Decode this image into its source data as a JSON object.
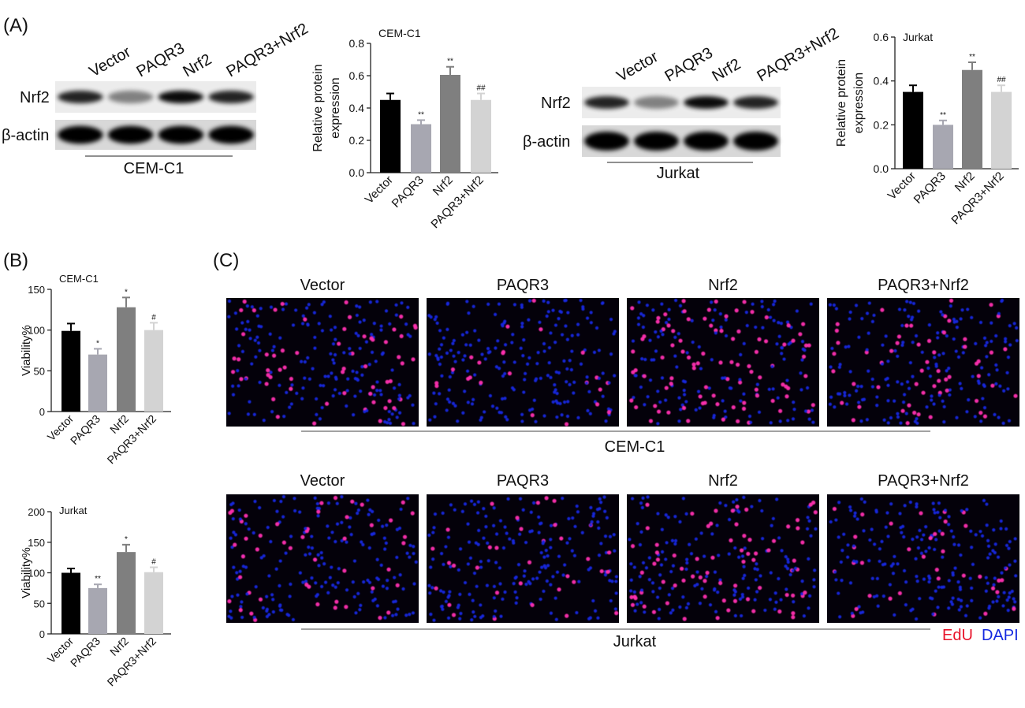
{
  "panel_labels": [
    "(A)",
    "(B)",
    "(C)"
  ],
  "blots": [
    {
      "lanes": [
        "Vector",
        "PAQR3",
        "Nrf2",
        "PAQR3+Nrf2"
      ],
      "rows": [
        "Nrf2",
        "β-actin"
      ],
      "cell_line": "CEM-C1"
    },
    {
      "lanes": [
        "Vector",
        "PAQR3",
        "Nrf2",
        "PAQR3+Nrf2"
      ],
      "rows": [
        "Nrf2",
        "β-actin"
      ],
      "cell_line": "Jurkat"
    }
  ],
  "chart_data": [
    {
      "type": "bar",
      "title": "CEM-C1",
      "y_label": [
        "Relative protein",
        "expression"
      ],
      "categories": [
        "Vector",
        "PAQR3",
        "Nrf2",
        "PAQR3+Nrf2"
      ],
      "values": [
        0.45,
        0.3,
        0.605,
        0.45
      ],
      "errors": [
        0.04,
        0.025,
        0.05,
        0.04
      ],
      "annotations": [
        null,
        "**",
        "**",
        "##"
      ],
      "colors": [
        "#000000",
        "#a7a7b1",
        "#7f7f7f",
        "#d3d3d3"
      ],
      "ylim": [
        0,
        0.8
      ],
      "yticks": [
        {
          "value": 0,
          "label": "0.0"
        },
        0.2,
        0.4,
        0.6,
        0.8
      ]
    },
    {
      "type": "bar",
      "title": "Jurkat",
      "y_label": [
        "Relative protein",
        "expression"
      ],
      "categories": [
        "Vector",
        "PAQR3",
        "Nrf2",
        "PAQR3+Nrf2"
      ],
      "values": [
        0.35,
        0.2,
        0.45,
        0.35
      ],
      "errors": [
        0.03,
        0.02,
        0.035,
        0.03
      ],
      "annotations": [
        null,
        "**",
        "**",
        "##"
      ],
      "colors": [
        "#000000",
        "#a7a7b1",
        "#7f7f7f",
        "#d3d3d3"
      ],
      "ylim": [
        0,
        0.6
      ],
      "yticks": [
        {
          "value": 0,
          "label": "0.0"
        },
        0.2,
        0.4,
        0.6
      ]
    },
    {
      "type": "bar",
      "title": "CEM-C1",
      "y_label": [
        "Viability%"
      ],
      "categories": [
        "Vector",
        "PAQR3",
        "Nrf2",
        "PAQR3+Nrf2"
      ],
      "values": [
        99,
        70,
        128,
        100
      ],
      "errors": [
        9,
        7,
        12,
        9
      ],
      "annotations": [
        null,
        "*",
        "*",
        "#"
      ],
      "colors": [
        "#000000",
        "#a7a7b1",
        "#7f7f7f",
        "#d3d3d3"
      ],
      "ylim": [
        0,
        150
      ],
      "yticks": [
        0,
        50,
        100,
        150
      ]
    },
    {
      "type": "bar",
      "title": "Jurkat",
      "y_label": [
        "Viability%"
      ],
      "categories": [
        "Vector",
        "PAQR3",
        "Nrf2",
        "PAQR3+Nrf2"
      ],
      "values": [
        100,
        75,
        134,
        101
      ],
      "errors": [
        7,
        6,
        12,
        8
      ],
      "annotations": [
        null,
        "**",
        "*",
        "#"
      ],
      "colors": [
        "#000000",
        "#a7a7b1",
        "#7f7f7f",
        "#d3d3d3"
      ],
      "ylim": [
        0,
        200
      ],
      "yticks": [
        0,
        50,
        100,
        150,
        200
      ]
    }
  ],
  "microscopy": {
    "columns": [
      "Vector",
      "PAQR3",
      "Nrf2",
      "PAQR3+Nrf2"
    ],
    "rows": [
      {
        "cell_line": "CEM-C1"
      },
      {
        "cell_line": "Jurkat"
      }
    ],
    "legend": [
      {
        "label": "EdU",
        "color": "#e8132a"
      },
      {
        "label": "DAPI",
        "color": "#1428e0"
      }
    ]
  }
}
